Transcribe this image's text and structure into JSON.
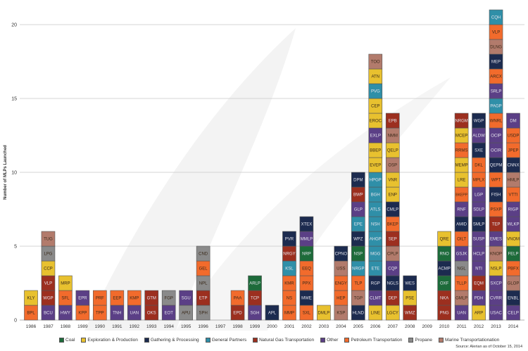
{
  "chart_data": {
    "type": "bar",
    "subtype": "stacked-labeled-blocks",
    "ylabel": "Number of MLPs Launched",
    "xlabel": "",
    "ylim": [
      0,
      21
    ],
    "yticks": [
      0,
      5,
      10,
      15,
      20
    ],
    "grid": true,
    "legend_position": "bottom",
    "source": "Source: Alerian as of October 15, 2014",
    "categories_legend": [
      {
        "key": "C",
        "name": "Coal",
        "color": "#1d6b3a"
      },
      {
        "key": "E",
        "name": "Exploration & Production",
        "color": "#e8c12f"
      },
      {
        "key": "G",
        "name": "Gathering & Processing",
        "color": "#1c2b4f"
      },
      {
        "key": "GP",
        "name": "General Partners",
        "color": "#2f8fa8"
      },
      {
        "key": "N",
        "name": "Natural Gas Transportation",
        "color": "#9c2f1f"
      },
      {
        "key": "O",
        "name": "Other",
        "color": "#5b3f86"
      },
      {
        "key": "P",
        "name": "Petroleum Transportation",
        "color": "#f26b2c"
      },
      {
        "key": "PR",
        "name": "Propane",
        "color": "#8a8a8a"
      },
      {
        "key": "M",
        "name": "Marine Transportationation",
        "color": "#b27b6c"
      }
    ],
    "years": [
      {
        "year": "1986",
        "mlps": [
          [
            "BPL",
            "P"
          ],
          [
            "KLY",
            "E"
          ]
        ]
      },
      {
        "year": "1987",
        "mlps": [
          [
            "BCU",
            "O"
          ],
          [
            "WGP",
            "N"
          ],
          [
            "VLP",
            "N"
          ],
          [
            "CCP",
            "E"
          ],
          [
            "LPG",
            "PR"
          ],
          [
            "TUG",
            "M"
          ]
        ]
      },
      {
        "year": "1988",
        "mlps": [
          [
            "HWY",
            "O"
          ],
          [
            "SFL",
            "P"
          ],
          [
            "MRP",
            "E"
          ]
        ]
      },
      {
        "year": "1989",
        "mlps": [
          [
            "KPP",
            "P"
          ],
          [
            "EPR",
            "O"
          ]
        ]
      },
      {
        "year": "1990",
        "mlps": [
          [
            "TPP",
            "P"
          ],
          [
            "PRF",
            "P"
          ]
        ]
      },
      {
        "year": "1991",
        "mlps": [
          [
            "TNH",
            "O"
          ],
          [
            "EEP",
            "P"
          ]
        ]
      },
      {
        "year": "1992",
        "mlps": [
          [
            "UAN",
            "O"
          ],
          [
            "KMP",
            "P"
          ]
        ]
      },
      {
        "year": "1993",
        "mlps": [
          [
            "OKS",
            "N"
          ],
          [
            "GTM",
            "N"
          ]
        ]
      },
      {
        "year": "1994",
        "mlps": [
          [
            "EOT",
            "O"
          ],
          [
            "FGP",
            "PR"
          ]
        ]
      },
      {
        "year": "1995",
        "mlps": [
          [
            "APU",
            "PR"
          ],
          [
            "SGU",
            "O"
          ]
        ]
      },
      {
        "year": "1996",
        "mlps": [
          [
            "SPH",
            "PR"
          ],
          [
            "ETP",
            "N"
          ],
          [
            "NPL",
            "PR"
          ],
          [
            "GEL",
            "P"
          ],
          [
            "CND",
            "PR"
          ]
        ]
      },
      {
        "year": "1997",
        "mlps": []
      },
      {
        "year": "1998",
        "mlps": [
          [
            "EPD",
            "N"
          ],
          [
            "PAA",
            "P"
          ]
        ]
      },
      {
        "year": "1999",
        "mlps": [
          [
            "SGH",
            "O"
          ],
          [
            "TCP",
            "N"
          ],
          [
            "ARLP",
            "C"
          ]
        ]
      },
      {
        "year": "2000",
        "mlps": [
          [
            "APL",
            "G"
          ]
        ]
      },
      {
        "year": "2001",
        "mlps": [
          [
            "MMP",
            "P"
          ],
          [
            "NS",
            "P"
          ],
          [
            "KMR",
            "P"
          ],
          [
            "KSL",
            "GP"
          ],
          [
            "NRGY",
            "N"
          ],
          [
            "PVR",
            "G"
          ]
        ]
      },
      {
        "year": "2002",
        "mlps": [
          [
            "SXL",
            "P"
          ],
          [
            "MWE",
            "G"
          ],
          [
            "PPX",
            "P"
          ],
          [
            "EEQ",
            "P"
          ],
          [
            "NRP",
            "C"
          ],
          [
            "MMLP",
            "O"
          ],
          [
            "XTEX",
            "G"
          ]
        ]
      },
      {
        "year": "2003",
        "mlps": [
          [
            "DMLP",
            "E"
          ]
        ]
      },
      {
        "year": "2004",
        "mlps": [
          [
            "KSP",
            "M"
          ],
          [
            "HEP",
            "P"
          ],
          [
            "ENGY",
            "P"
          ],
          [
            "USS",
            "M"
          ],
          [
            "CPNO",
            "G"
          ]
        ]
      },
      {
        "year": "2005",
        "mlps": [
          [
            "HLND",
            "G"
          ],
          [
            "TGP",
            "M"
          ],
          [
            "TLP",
            "P"
          ],
          [
            "NRGP",
            "GP"
          ],
          [
            "NSP",
            "C"
          ],
          [
            "WPZ",
            "G"
          ],
          [
            "EPE",
            "GP"
          ],
          [
            "GLP",
            "O"
          ],
          [
            "BWP",
            "N"
          ],
          [
            "DPM",
            "G"
          ]
        ]
      },
      {
        "year": "2006",
        "mlps": [
          [
            "LINE",
            "E"
          ],
          [
            "CLMT",
            "O"
          ],
          [
            "RGP",
            "G"
          ],
          [
            "ETE",
            "GP"
          ],
          [
            "MGG",
            "GP"
          ],
          [
            "AHGP",
            "GP"
          ],
          [
            "NSH",
            "GP"
          ],
          [
            "ATLS",
            "GP"
          ],
          [
            "BGH",
            "GP"
          ],
          [
            "HPGP",
            "GP"
          ],
          [
            "EVEP",
            "E"
          ],
          [
            "BBEP",
            "E"
          ],
          [
            "EXLP",
            "O"
          ],
          [
            "EROC",
            "E"
          ],
          [
            "CEP",
            "E"
          ],
          [
            "PVG",
            "GP"
          ],
          [
            "ATN",
            "E"
          ],
          [
            "TOO",
            "M"
          ]
        ]
      },
      {
        "year": "2007",
        "mlps": [
          [
            "LGCY",
            "E"
          ],
          [
            "DEP",
            "N"
          ],
          [
            "NGLS",
            "G"
          ],
          [
            "CQP",
            "O"
          ],
          [
            "CPLP",
            "M"
          ],
          [
            "SEP",
            "N"
          ],
          [
            "BKEP",
            "P"
          ],
          [
            "CMLP",
            "G"
          ],
          [
            "ENP",
            "E"
          ],
          [
            "VNR",
            "E"
          ],
          [
            "OSP",
            "M"
          ],
          [
            "QELP",
            "E"
          ],
          [
            "NMM",
            "M"
          ],
          [
            "EPB",
            "N"
          ]
        ]
      },
      {
        "year": "2008",
        "mlps": [
          [
            "WMZ",
            "N"
          ],
          [
            "PSE",
            "E"
          ],
          [
            "WES",
            "G"
          ]
        ]
      },
      {
        "year": "2009",
        "mlps": []
      },
      {
        "year": "2010",
        "mlps": [
          [
            "PNG",
            "N"
          ],
          [
            "NKA",
            "N"
          ],
          [
            "OXF",
            "C"
          ],
          [
            "ACMP",
            "G"
          ],
          [
            "RNO",
            "C"
          ],
          [
            "QRE",
            "E"
          ]
        ]
      },
      {
        "year": "2011",
        "mlps": [
          [
            "UAN",
            "O"
          ],
          [
            "GMLP",
            "M"
          ],
          [
            "TLLP",
            "P"
          ],
          [
            "NGL",
            "PR"
          ],
          [
            "GSJK",
            "O"
          ],
          [
            "OILT",
            "P"
          ],
          [
            "AMID",
            "G"
          ],
          [
            "RNF",
            "O"
          ],
          [
            "BKEPP",
            "P"
          ],
          [
            "LRE",
            "E"
          ],
          [
            "MEMP",
            "E"
          ],
          [
            "RRMS",
            "P"
          ],
          [
            "MCEP",
            "E"
          ],
          [
            "NRGM",
            "N"
          ]
        ]
      },
      {
        "year": "2012",
        "mlps": [
          [
            "ARP",
            "E"
          ],
          [
            "PDH",
            "O"
          ],
          [
            "EQM",
            "N"
          ],
          [
            "NTI",
            "O"
          ],
          [
            "HCLP",
            "O"
          ],
          [
            "SUSP",
            "O"
          ],
          [
            "SMLP",
            "G"
          ],
          [
            "SDLP",
            "O"
          ],
          [
            "LGP",
            "O"
          ],
          [
            "MPLX",
            "P"
          ],
          [
            "DKL",
            "P"
          ],
          [
            "SXE",
            "G"
          ],
          [
            "ALDW",
            "O"
          ],
          [
            "WGP",
            "G"
          ]
        ]
      },
      {
        "year": "2013",
        "mlps": [
          [
            "USAC",
            "O"
          ],
          [
            "CVRR",
            "O"
          ],
          [
            "SXCP",
            "O"
          ],
          [
            "NSLP",
            "E"
          ],
          [
            "KNOP",
            "M"
          ],
          [
            "EMES",
            "O"
          ],
          [
            "TEP",
            "N"
          ],
          [
            "PSXP",
            "P"
          ],
          [
            "FISH",
            "G"
          ],
          [
            "WPT",
            "P"
          ],
          [
            "QEPM",
            "G"
          ],
          [
            "OCIR",
            "O"
          ],
          [
            "OCIP",
            "O"
          ],
          [
            "WNRL",
            "P"
          ],
          [
            "PAGP",
            "GP"
          ],
          [
            "SRLP",
            "O"
          ],
          [
            "ARCX",
            "P"
          ],
          [
            "MEP",
            "G"
          ],
          [
            "DLNG",
            "M"
          ],
          [
            "VLP",
            "P"
          ],
          [
            "CQH",
            "GP"
          ]
        ]
      },
      {
        "year": "2014",
        "mlps": [
          [
            "CELP",
            "O"
          ],
          [
            "ENBL",
            "G"
          ],
          [
            "GLOP",
            "M"
          ],
          [
            "PBFX",
            "P"
          ],
          [
            "FELP",
            "C"
          ],
          [
            "VNOM",
            "E"
          ],
          [
            "WLKP",
            "O"
          ],
          [
            "RIGP",
            "O"
          ],
          [
            "VTTI",
            "P"
          ],
          [
            "HMLP",
            "M"
          ],
          [
            "CNNX",
            "G"
          ],
          [
            "JPEP",
            "P"
          ],
          [
            "USDP",
            "P"
          ],
          [
            "DM",
            "O"
          ]
        ]
      }
    ]
  }
}
